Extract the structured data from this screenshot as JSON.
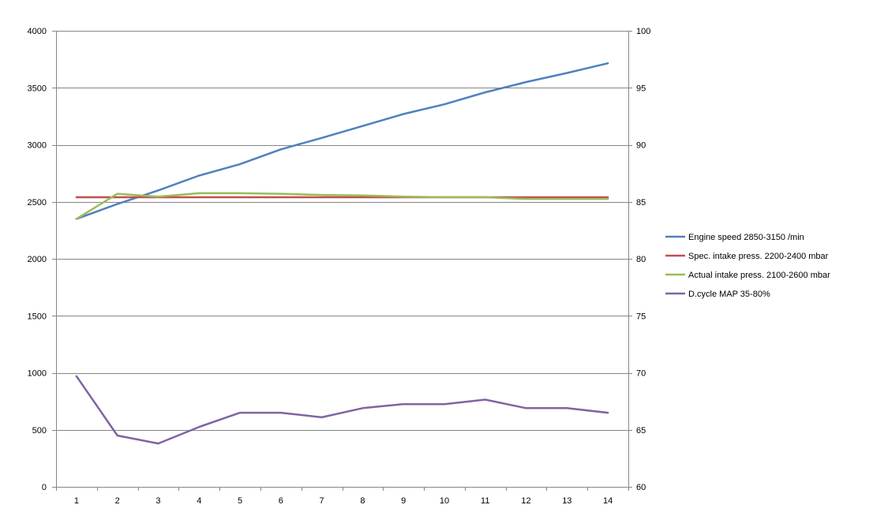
{
  "chart_data": {
    "type": "line",
    "title": "",
    "xlabel": "",
    "ylabel": "",
    "y2label": "",
    "categories": [
      "1",
      "2",
      "3",
      "4",
      "5",
      "6",
      "7",
      "8",
      "9",
      "10",
      "11",
      "12",
      "13",
      "14"
    ],
    "ylim": [
      0,
      4000
    ],
    "y2lim": [
      60,
      100
    ],
    "yticks": [
      "0",
      "500",
      "1000",
      "1500",
      "2000",
      "2500",
      "3000",
      "3500",
      "4000"
    ],
    "y2ticks": [
      "60",
      "65",
      "70",
      "75",
      "80",
      "85",
      "90",
      "95",
      "100"
    ],
    "grid": true,
    "legend_position": "right",
    "series": [
      {
        "name": "Engine speed 2850-3150  /min",
        "axis": "left",
        "color": "#4f81bd",
        "values": [
          2350,
          2480,
          2600,
          2730,
          2830,
          2960,
          3060,
          3165,
          3270,
          3355,
          3460,
          3550,
          3630,
          3715
        ]
      },
      {
        "name": "Spec. intake press. 2200-2400  mbar",
        "axis": "left",
        "color": "#c0504d",
        "values": [
          2540,
          2540,
          2540,
          2540,
          2540,
          2540,
          2540,
          2540,
          2540,
          2540,
          2540,
          2540,
          2540,
          2540
        ]
      },
      {
        "name": "Actual intake press. 2100-2600 mbar",
        "axis": "left",
        "color": "#9bbb59",
        "values": [
          2350,
          2570,
          2545,
          2575,
          2575,
          2570,
          2560,
          2555,
          2545,
          2540,
          2540,
          2525,
          2525,
          2525
        ]
      },
      {
        "name": "D.cycle MAP 35-80%",
        "axis": "left",
        "color": "#8064a2",
        "values": [
          970,
          450,
          380,
          525,
          650,
          650,
          610,
          690,
          725,
          725,
          765,
          690,
          690,
          650
        ]
      }
    ]
  }
}
